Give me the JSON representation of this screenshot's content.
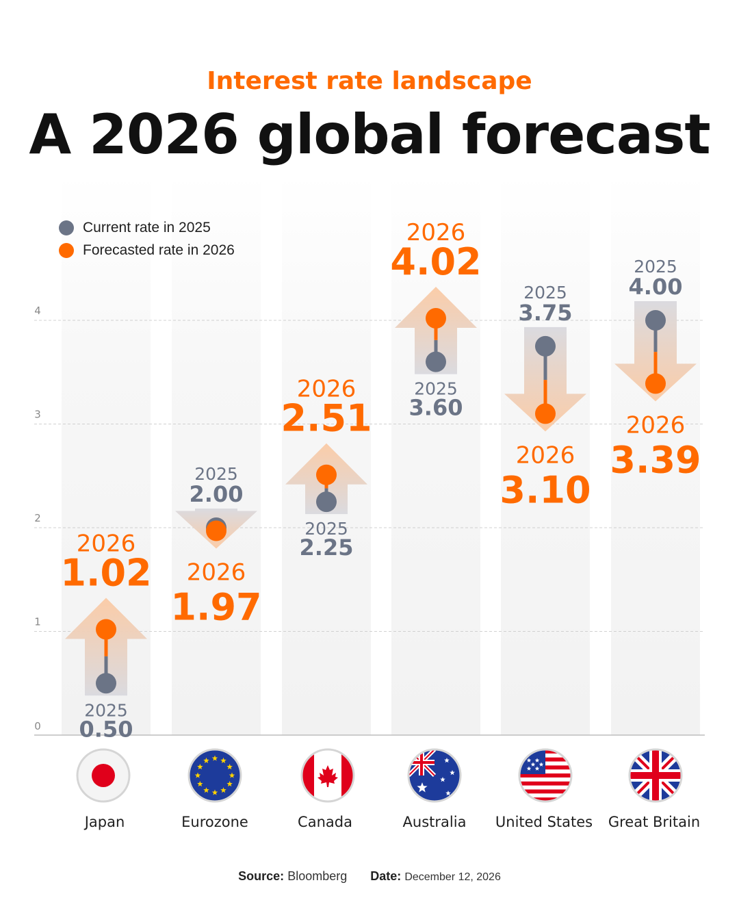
{
  "header": {
    "subtitle": "Interest rate landscape",
    "title": "A 2026 global forecast"
  },
  "legend": {
    "current_label": "Current rate in 2025",
    "forecast_label": "Forecasted rate in 2026"
  },
  "colors": {
    "current": "#6b7486",
    "forecast": "#ff6a00",
    "arrow": "#fbd0b0",
    "column": "#f5f5f5",
    "grid": "#d0d0d0"
  },
  "footer": {
    "source_label": "Source:",
    "source_value": "Bloomberg",
    "date_label": "Date:",
    "date_value": "December 12, 2026"
  },
  "chart_data": {
    "type": "dot-arrow",
    "ylim": [
      0,
      4
    ],
    "y_ticks": [
      "0",
      "1",
      "2",
      "3",
      "4"
    ],
    "grid": true,
    "legend_position": "top-left",
    "current_year_label": "2025",
    "forecast_year_label": "2026",
    "categories": [
      "Japan",
      "Eurozone",
      "Canada",
      "Australia",
      "United States",
      "Great Britain"
    ],
    "flags": [
      "japan-flag",
      "eu-flag",
      "canada-flag",
      "australia-flag",
      "us-flag",
      "uk-flag"
    ],
    "series": [
      {
        "name": "Current rate in 2025",
        "values": [
          0.5,
          2.0,
          2.25,
          3.6,
          3.75,
          4.0
        ],
        "labels": [
          "0.50",
          "2.00",
          "2.25",
          "3.60",
          "3.75",
          "4.00"
        ]
      },
      {
        "name": "Forecasted rate in 2026",
        "values": [
          1.02,
          1.97,
          2.51,
          4.02,
          3.1,
          3.39
        ],
        "labels": [
          "1.02",
          "1.97",
          "2.51",
          "4.02",
          "3.10",
          "3.39"
        ]
      }
    ]
  }
}
